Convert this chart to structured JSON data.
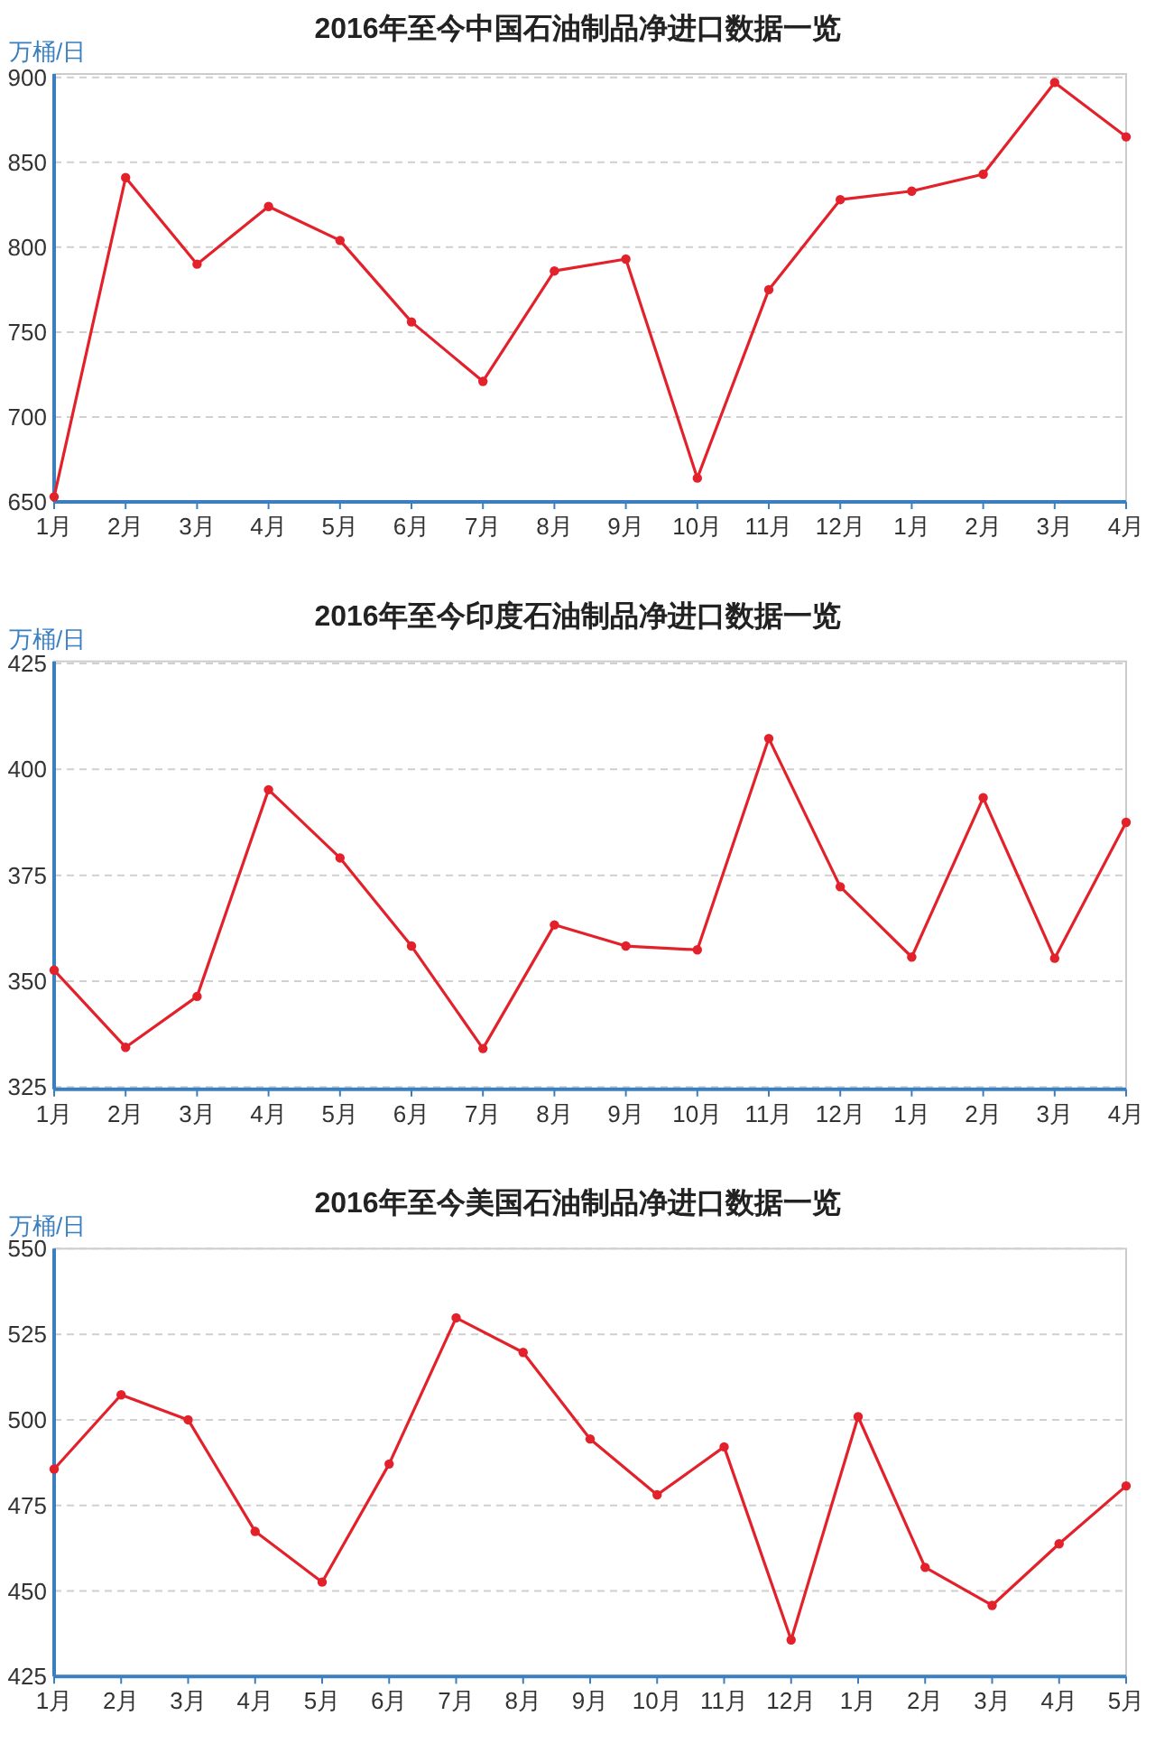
{
  "chart_data": [
    {
      "type": "line",
      "title": "2016年至今中国石油制品净进口数据一览",
      "ylabel": "万桶/日",
      "categories": [
        "1月",
        "2月",
        "3月",
        "4月",
        "5月",
        "6月",
        "7月",
        "8月",
        "9月",
        "10月",
        "11月",
        "12月",
        "1月",
        "2月",
        "3月",
        "4月"
      ],
      "series": [
        {
          "color": "#e3212b",
          "values": [
            653,
            841,
            790,
            824,
            804,
            756,
            721,
            786,
            793,
            664,
            775,
            828,
            833,
            843,
            897,
            865
          ]
        }
      ],
      "ylim": [
        650,
        902
      ],
      "yticks": [
        650,
        700,
        750,
        800,
        850,
        900
      ],
      "grid": "y",
      "marker": "circle",
      "line_style": "solid"
    },
    {
      "type": "line",
      "title": "2016年至今印度石油制品净进口数据一览",
      "ylabel": "万桶/日",
      "categories": [
        "1月",
        "2月",
        "3月",
        "4月",
        "5月",
        "6月",
        "7月",
        "8月",
        "9月",
        "10月",
        "11月",
        "12月",
        "1月",
        "2月",
        "3月",
        "4月"
      ],
      "series": [
        {
          "color": "#e3212b",
          "values": [
            352.6,
            334.4,
            346.4,
            395.2,
            379.1,
            358.3,
            334.1,
            363.3,
            358.3,
            357.4,
            407.3,
            372.3,
            355.7,
            393.3,
            355.4,
            387.5
          ]
        }
      ],
      "ylim": [
        324.5,
        425.5
      ],
      "yticks": [
        325,
        350,
        375,
        400,
        425
      ],
      "grid": "y",
      "marker": "circle",
      "line_style": "solid"
    },
    {
      "type": "line",
      "title": "2016年至今美国石油制品净进口数据一览",
      "ylabel": "万桶/日",
      "categories": [
        "1月",
        "2月",
        "3月",
        "4月",
        "5月",
        "6月",
        "7月",
        "8月",
        "9月",
        "10月",
        "11月",
        "12月",
        "1月",
        "2月",
        "3月",
        "4月",
        "5月"
      ],
      "series": [
        {
          "color": "#e3212b",
          "values": [
            485.6,
            507.3,
            500,
            467.4,
            452.6,
            487.1,
            529.8,
            519.7,
            494.4,
            478.1,
            492.1,
            435.7,
            500.9,
            456.9,
            445.8,
            463.8,
            480.7
          ]
        }
      ],
      "ylim": [
        425,
        550
      ],
      "yticks": [
        425,
        450,
        475,
        500,
        525,
        550
      ],
      "grid": "y",
      "marker": "circle",
      "line_style": "solid"
    }
  ]
}
